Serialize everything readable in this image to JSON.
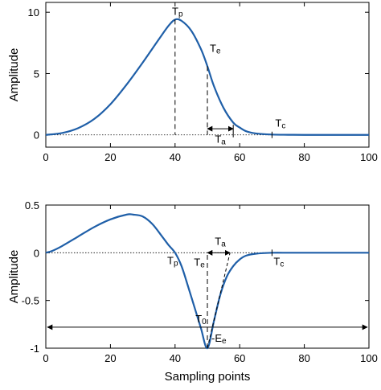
{
  "chart_data": [
    {
      "type": "line",
      "title": "",
      "xlabel": "",
      "ylabel": "Amplitude",
      "xlim": [
        0,
        100
      ],
      "ylim": [
        -1,
        10.8
      ],
      "xticks": [
        0,
        20,
        40,
        60,
        80,
        100
      ],
      "xtick_labels": [
        "0",
        "20",
        "40",
        "60",
        "80",
        "100"
      ],
      "yticks": [
        0,
        5,
        10
      ],
      "ytick_labels": [
        "0",
        "5",
        "10"
      ],
      "grid": false,
      "series_color": "#1f5fa8",
      "series": [
        {
          "x": [
            0,
            5,
            10,
            15,
            20,
            25,
            30,
            35,
            38,
            40,
            42,
            45,
            48,
            50,
            52,
            55,
            58,
            60,
            62,
            65,
            70,
            75,
            80,
            90,
            100
          ],
          "values": [
            0.0,
            0.15,
            0.55,
            1.3,
            2.5,
            4.1,
            5.9,
            7.8,
            8.9,
            9.4,
            9.3,
            8.5,
            7.0,
            5.6,
            4.0,
            2.2,
            1.0,
            0.6,
            0.3,
            0.12,
            0.03,
            0.01,
            0.0,
            0.0,
            0.0
          ]
        }
      ],
      "annotations": [
        {
          "label": "Tp",
          "x": 40,
          "y": 9.4
        },
        {
          "label": "Te",
          "x": 50,
          "y": 5.6
        },
        {
          "label": "Ta",
          "x1": 50,
          "x2": 58,
          "y": 0.5
        },
        {
          "label": "Tc",
          "x": 70,
          "y": 0
        }
      ]
    },
    {
      "type": "line",
      "title": "",
      "xlabel": "Sampling points",
      "ylabel": "Amplitude",
      "xlim": [
        0,
        100
      ],
      "ylim": [
        -1,
        0.5
      ],
      "xticks": [
        0,
        20,
        40,
        60,
        80,
        100
      ],
      "xtick_labels": [
        "0",
        "20",
        "40",
        "60",
        "80",
        "100"
      ],
      "yticks": [
        0.5,
        0,
        -0.5,
        -1
      ],
      "ytick_labels": [
        "0.5",
        "0",
        "-0.5",
        "-1"
      ],
      "grid": false,
      "series_color": "#1f5fa8",
      "series": [
        {
          "x": [
            0,
            2,
            5,
            10,
            15,
            20,
            25,
            27,
            30,
            33,
            36,
            38,
            40,
            42,
            44,
            46,
            48,
            50,
            52,
            54,
            56,
            58,
            60,
            62,
            65,
            70,
            75,
            80,
            90,
            100
          ],
          "values": [
            0.0,
            0.02,
            0.07,
            0.17,
            0.27,
            0.35,
            0.4,
            0.4,
            0.38,
            0.3,
            0.17,
            0.08,
            0.0,
            -0.14,
            -0.35,
            -0.57,
            -0.79,
            -1.0,
            -0.72,
            -0.44,
            -0.25,
            -0.14,
            -0.07,
            -0.03,
            -0.01,
            0.0,
            0.0,
            0.0,
            0.0,
            0.0
          ]
        }
      ],
      "annotations": [
        {
          "label": "Tp",
          "x": 40,
          "y": 0
        },
        {
          "label": "Te",
          "x": 50,
          "y": 0
        },
        {
          "label": "Ta",
          "x1": 50,
          "x2": 57,
          "y": 0
        },
        {
          "label": "Tc",
          "x": 70,
          "y": 0
        },
        {
          "label": "T0",
          "x1": 0,
          "x2": 100,
          "y": -0.78
        },
        {
          "label": "-Ee",
          "x": 50,
          "y": -1
        }
      ]
    }
  ]
}
